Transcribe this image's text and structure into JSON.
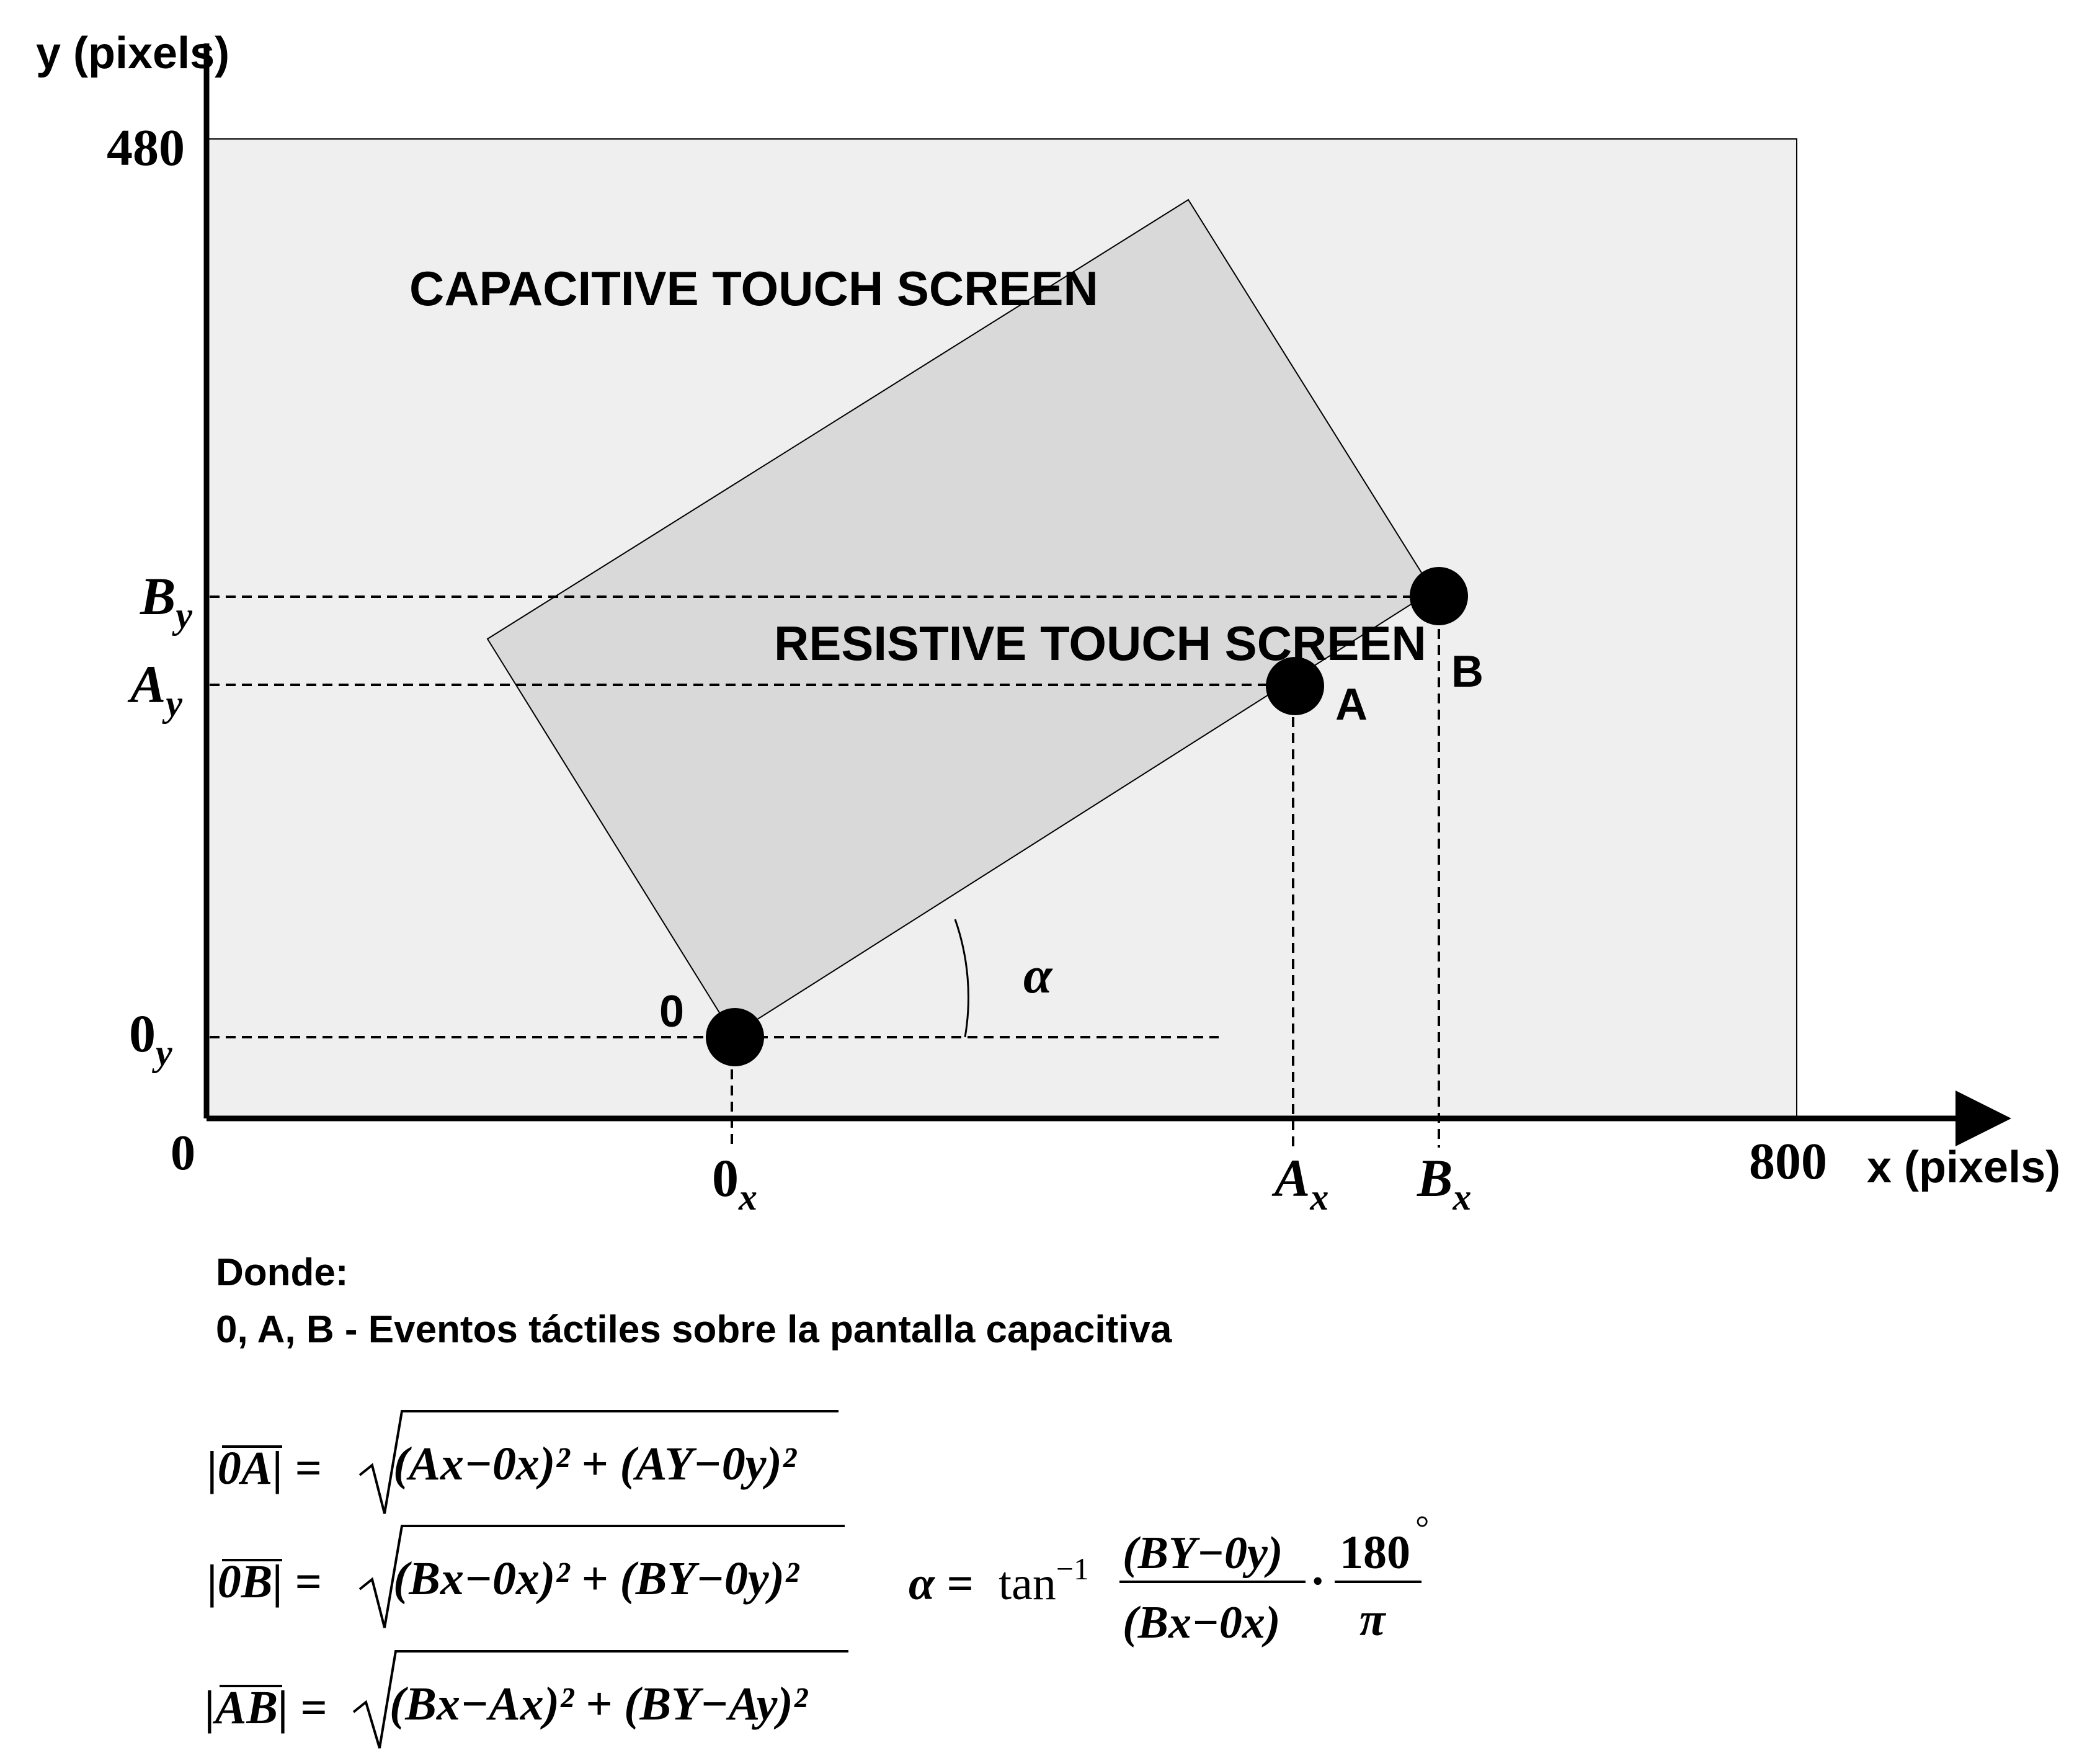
{
  "axes": {
    "y_label": "y (pixels)",
    "x_label": "x (pixels)",
    "y_max": "480",
    "x_max": "800",
    "origin": "0"
  },
  "regions": {
    "capacitive_label": "CAPACITIVE TOUCH SCREEN",
    "resistive_label": "RESISTIVE TOUCH SCREEN"
  },
  "points": {
    "origin_label": "0",
    "a_label": "A",
    "b_label": "B"
  },
  "ticks": {
    "y": [
      {
        "base": "B",
        "sub": "y"
      },
      {
        "base": "A",
        "sub": "y"
      },
      {
        "base": "0",
        "sub": "y"
      }
    ],
    "x": [
      {
        "base": "0",
        "sub": "x"
      },
      {
        "base": "A",
        "sub": "x"
      },
      {
        "base": "B",
        "sub": "x"
      }
    ]
  },
  "angle_label": "α",
  "legend": {
    "line1": "Donde:",
    "line2": "0, A, B  - Eventos táctiles sobre la pantalla capacitiva"
  },
  "formulas": {
    "oa_lhs": "|0A| =",
    "ob_lhs": "|0B| =",
    "ab_lhs": "|AB| =",
    "oa_rhs": "(Ax−0x)² + (AY−0y)²",
    "ob_rhs": "(Bx−0x)² + (BY−0y)²",
    "ab_rhs": "(Bx−Ax)² + (BY−Ay)²",
    "alpha_lhs": "α =",
    "tan_inv": "tan",
    "tan_exp": "−1",
    "frac_num": "(BY−0y)",
    "frac_den": "(Bx−0x)",
    "dot": "·",
    "deg_num": "180",
    "deg_sym": "°",
    "deg_den": "π"
  },
  "colors": {
    "capacitive_fill": "#efefef",
    "resistive_fill": "#d9d9d9",
    "ink": "#000000"
  }
}
